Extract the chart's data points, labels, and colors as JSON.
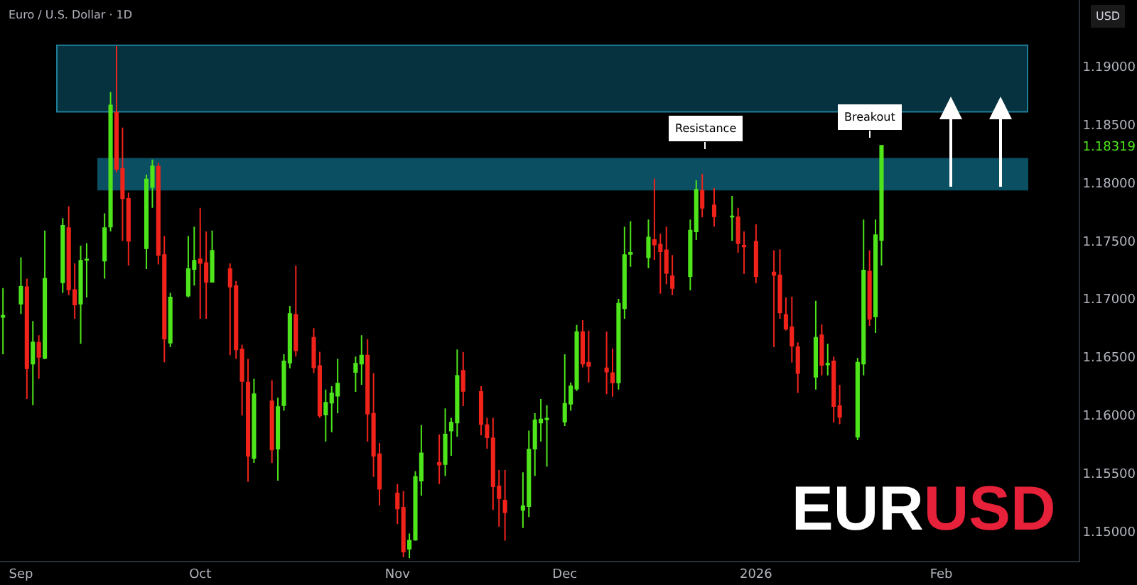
{
  "chart_data": {
    "type": "candlestick",
    "title": "EURUSD",
    "subtitle": "Euro / U.S. Dollar · 1D",
    "ylabel": "USD",
    "x": [
      "2025-08-29",
      "2025-09-01",
      "2025-09-02",
      "2025-09-03",
      "2025-09-04",
      "2025-09-05",
      "2025-09-08",
      "2025-09-09",
      "2025-09-10",
      "2025-09-11",
      "2025-09-12",
      "2025-09-15",
      "2025-09-16",
      "2025-09-17",
      "2025-09-18",
      "2025-09-19",
      "2025-09-22",
      "2025-09-23",
      "2025-09-24",
      "2025-09-25",
      "2025-09-26",
      "2025-09-29",
      "2025-09-30",
      "2025-10-01",
      "2025-10-02",
      "2025-10-03",
      "2025-10-06",
      "2025-10-07",
      "2025-10-08",
      "2025-10-09",
      "2025-10-10",
      "2025-10-13",
      "2025-10-14",
      "2025-10-15",
      "2025-10-16",
      "2025-10-17",
      "2025-10-20",
      "2025-10-21",
      "2025-10-22",
      "2025-10-23",
      "2025-10-24",
      "2025-10-27",
      "2025-10-28",
      "2025-10-29",
      "2025-10-30",
      "2025-10-31",
      "2025-11-03",
      "2025-11-04",
      "2025-11-05",
      "2025-11-06",
      "2025-11-07",
      "2025-11-10",
      "2025-11-11",
      "2025-11-12",
      "2025-11-13",
      "2025-11-14",
      "2025-11-17",
      "2025-11-18",
      "2025-11-19",
      "2025-11-20",
      "2025-11-21",
      "2025-11-24",
      "2025-11-25",
      "2025-11-26",
      "2025-11-27",
      "2025-11-28",
      "2025-12-01",
      "2025-12-02",
      "2025-12-03",
      "2025-12-04",
      "2025-12-05",
      "2025-12-08",
      "2025-12-09",
      "2025-12-10",
      "2025-12-11",
      "2025-12-12",
      "2025-12-15",
      "2025-12-16",
      "2025-12-17",
      "2025-12-18",
      "2025-12-19",
      "2025-12-22",
      "2025-12-23",
      "2025-12-24",
      "2025-12-26",
      "2025-12-29",
      "2025-12-30",
      "2025-12-31",
      "2026-01-02",
      "2026-01-05",
      "2026-01-06",
      "2026-01-07",
      "2026-01-08",
      "2026-01-09",
      "2026-01-12",
      "2026-01-13",
      "2026-01-14",
      "2026-01-15",
      "2026-01-16",
      "2026-01-19",
      "2026-01-20",
      "2026-01-21",
      "2026-01-22",
      "2026-01-23"
    ],
    "ohlc": [
      [
        1.16845,
        1.17093,
        1.16524,
        1.16855
      ],
      [
        1.16959,
        1.17357,
        1.1687,
        1.17105
      ],
      [
        1.17101,
        1.17174,
        1.16138,
        1.16402
      ],
      [
        1.16443,
        1.16809,
        1.16085,
        1.16626
      ],
      [
        1.16622,
        1.16687,
        1.16313,
        1.165
      ],
      [
        1.16492,
        1.17589,
        1.1648,
        1.17174
      ],
      [
        1.17142,
        1.17695,
        1.17052,
        1.1763
      ],
      [
        1.1761,
        1.17797,
        1.17032,
        1.17081
      ],
      [
        1.17077,
        1.17305,
        1.16829,
        1.16951
      ],
      [
        1.16959,
        1.17459,
        1.16614,
        1.17329
      ],
      [
        1.17337,
        1.1748,
        1.17012,
        1.1734
      ],
      [
        1.17329,
        1.17736,
        1.17174,
        1.1761
      ],
      [
        1.17622,
        1.1878,
        1.17581,
        1.18666
      ],
      [
        1.18605,
        1.19175,
        1.18089,
        1.18118
      ],
      [
        1.18118,
        1.18475,
        1.175,
        1.17866
      ],
      [
        1.17862,
        1.17914,
        1.17288,
        1.175
      ],
      [
        1.17435,
        1.18069,
        1.17256,
        1.18028
      ],
      [
        1.17963,
        1.18199,
        1.17784,
        1.18142
      ],
      [
        1.18138,
        1.1817,
        1.17297,
        1.17378
      ],
      [
        1.17378,
        1.17541,
        1.16455,
        1.16658
      ],
      [
        1.16622,
        1.17052,
        1.16585,
        1.17012
      ],
      [
        1.17028,
        1.17541,
        1.17012,
        1.17256
      ],
      [
        1.17256,
        1.17622,
        1.17114,
        1.17329
      ],
      [
        1.17341,
        1.17784,
        1.16829,
        1.17309
      ],
      [
        1.17309,
        1.17581,
        1.16829,
        1.17146
      ],
      [
        1.17146,
        1.17589,
        1.17142,
        1.17414
      ],
      [
        1.17256,
        1.17305,
        1.16516,
        1.17105
      ],
      [
        1.1711,
        1.17154,
        1.16483,
        1.16565
      ],
      [
        1.16565,
        1.16606,
        1.15996,
        1.16293
      ],
      [
        1.1628,
        1.16483,
        1.15427,
        1.1565
      ],
      [
        1.1563,
        1.16313,
        1.15589,
        1.16179
      ],
      [
        1.16118,
        1.16301,
        1.15589,
        1.15703
      ],
      [
        1.15711,
        1.1615,
        1.15435,
        1.16069
      ],
      [
        1.16085,
        1.16524,
        1.16037,
        1.16463
      ],
      [
        1.16451,
        1.16939,
        1.16402,
        1.1687
      ],
      [
        1.16862,
        1.17288,
        1.16504,
        1.16557
      ],
      [
        1.16666,
        1.16748,
        1.16362,
        1.1641
      ],
      [
        1.16423,
        1.16545,
        1.15975,
        1.15996
      ],
      [
        1.16004,
        1.16219,
        1.15772,
        1.16106
      ],
      [
        1.16106,
        1.16248,
        1.15853,
        1.16187
      ],
      [
        1.16166,
        1.16483,
        1.16016,
        1.16272
      ],
      [
        1.1637,
        1.16504,
        1.16199,
        1.16443
      ],
      [
        1.16443,
        1.16687,
        1.1626,
        1.16512
      ],
      [
        1.16512,
        1.16654,
        1.15772,
        1.16012
      ],
      [
        1.16012,
        1.16362,
        1.15467,
        1.1565
      ],
      [
        1.15663,
        1.1576,
        1.15223,
        1.15366
      ],
      [
        1.15325,
        1.15406,
        1.15061,
        1.15195
      ],
      [
        1.15203,
        1.15345,
        1.14776,
        1.14825
      ],
      [
        1.14849,
        1.1498,
        1.14768,
        1.14919
      ],
      [
        1.14927,
        1.15516,
        1.14919,
        1.15467
      ],
      [
        1.15435,
        1.15914,
        1.15305,
        1.15671
      ],
      [
        1.15589,
        1.15833,
        1.15406,
        1.15573
      ],
      [
        1.15577,
        1.16057,
        1.15475,
        1.15833
      ],
      [
        1.15866,
        1.15976,
        1.1565,
        1.15935
      ],
      [
        1.15935,
        1.16565,
        1.15813,
        1.16337
      ],
      [
        1.16382,
        1.16544,
        1.16077,
        1.16207
      ],
      [
        1.16199,
        1.16248,
        1.15825,
        1.15922
      ],
      [
        1.15914,
        1.15976,
        1.15711,
        1.15809
      ],
      [
        1.15801,
        1.15976,
        1.15183,
        1.15386
      ],
      [
        1.15386,
        1.15528,
        1.1504,
        1.15284
      ],
      [
        1.15264,
        1.15528,
        1.14919,
        1.15163
      ],
      [
        1.15183,
        1.15508,
        1.15028,
        1.15215
      ],
      [
        1.15215,
        1.15866,
        1.15122,
        1.15703
      ],
      [
        1.15711,
        1.16016,
        1.15475,
        1.15955
      ],
      [
        1.15935,
        1.16138,
        1.15772,
        1.15963
      ],
      [
        1.15963,
        1.16085,
        1.15557,
        1.15971
      ],
      [
        1.15943,
        1.16524,
        1.15906,
        1.16097
      ],
      [
        1.16097,
        1.1628,
        1.16037,
        1.16248
      ],
      [
        1.16227,
        1.16776,
        1.16207,
        1.16715
      ],
      [
        1.16715,
        1.16817,
        1.1641,
        1.16443
      ],
      [
        1.16451,
        1.16727,
        1.1628,
        1.16423
      ],
      [
        1.16402,
        1.16719,
        1.16179,
        1.16374
      ],
      [
        1.16362,
        1.16573,
        1.16158,
        1.1628
      ],
      [
        1.1628,
        1.17,
        1.16219,
        1.16959
      ],
      [
        1.16919,
        1.17622,
        1.16829,
        1.17378
      ],
      [
        1.17386,
        1.1767,
        1.17276,
        1.17398
      ],
      [
        1.17357,
        1.17683,
        1.17264,
        1.17528
      ],
      [
        1.17508,
        1.18036,
        1.17337,
        1.17467
      ],
      [
        1.17467,
        1.17561,
        1.17044,
        1.1741
      ],
      [
        1.17418,
        1.17622,
        1.17126,
        1.17223
      ],
      [
        1.17195,
        1.17378,
        1.17032,
        1.17093
      ],
      [
        1.17195,
        1.17683,
        1.17073,
        1.17589
      ],
      [
        1.17581,
        1.1802,
        1.17508,
        1.17939
      ],
      [
        1.17931,
        1.18077,
        1.17703,
        1.17784
      ],
      [
        1.17805,
        1.17955,
        1.17622,
        1.17711
      ],
      [
        1.17707,
        1.17886,
        1.175,
        1.17711
      ],
      [
        1.17703,
        1.17784,
        1.17398,
        1.1748
      ],
      [
        1.17459,
        1.17581,
        1.17215,
        1.17451
      ],
      [
        1.17492,
        1.17642,
        1.17134,
        1.17195
      ],
      [
        1.17228,
        1.17419,
        1.16585,
        1.17207
      ],
      [
        1.17203,
        1.17427,
        1.16829,
        1.16882
      ],
      [
        1.16862,
        1.17012,
        1.16728,
        1.16744
      ],
      [
        1.16756,
        1.1702,
        1.16451,
        1.16597
      ],
      [
        1.16585,
        1.16626,
        1.16191,
        1.16362
      ],
      [
        1.16329,
        1.16983,
        1.16219,
        1.16666
      ],
      [
        1.16687,
        1.1678,
        1.16341,
        1.16431
      ],
      [
        1.16435,
        1.16613,
        1.16341,
        1.16443
      ],
      [
        1.16463,
        1.16504,
        1.15935,
        1.16077
      ],
      [
        1.16077,
        1.1626,
        1.15922,
        1.15984
      ],
      [
        1.15813,
        1.16492,
        1.15784,
        1.16451
      ],
      [
        1.16443,
        1.17683,
        1.16341,
        1.17244
      ],
      [
        1.17236,
        1.17419,
        1.16768,
        1.16829
      ],
      [
        1.16849,
        1.17683,
        1.16707,
        1.17548
      ],
      [
        1.17508,
        1.18321,
        1.17288,
        1.18319
      ]
    ],
    "colors": [
      "#4ee51b",
      "#4ee51b",
      "#f0231b",
      "#4ee51b",
      "#f0231b",
      "#4ee51b",
      "#4ee51b",
      "#f0231b",
      "#f0231b",
      "#4ee51b",
      "#4ee51b",
      "#4ee51b",
      "#4ee51b",
      "#f0231b",
      "#f0231b",
      "#f0231b",
      "#4ee51b",
      "#4ee51b",
      "#f0231b",
      "#f0231b",
      "#4ee51b",
      "#4ee51b",
      "#4ee51b",
      "#f0231b",
      "#f0231b",
      "#4ee51b",
      "#f0231b",
      "#f0231b",
      "#f0231b",
      "#f0231b",
      "#4ee51b",
      "#f0231b",
      "#4ee51b",
      "#4ee51b",
      "#4ee51b",
      "#f0231b",
      "#f0231b",
      "#f0231b",
      "#4ee51b",
      "#4ee51b",
      "#4ee51b",
      "#4ee51b",
      "#4ee51b",
      "#f0231b",
      "#f0231b",
      "#f0231b",
      "#f0231b",
      "#f0231b",
      "#4ee51b",
      "#4ee51b",
      "#4ee51b",
      "#f0231b",
      "#4ee51b",
      "#4ee51b",
      "#4ee51b",
      "#f0231b",
      "#f0231b",
      "#f0231b",
      "#f0231b",
      "#f0231b",
      "#f0231b",
      "#4ee51b",
      "#4ee51b",
      "#4ee51b",
      "#4ee51b",
      "#4ee51b",
      "#4ee51b",
      "#4ee51b",
      "#4ee51b",
      "#f0231b",
      "#f0231b",
      "#f0231b",
      "#f0231b",
      "#4ee51b",
      "#4ee51b",
      "#4ee51b",
      "#4ee51b",
      "#f0231b",
      "#f0231b",
      "#f0231b",
      "#f0231b",
      "#4ee51b",
      "#4ee51b",
      "#f0231b",
      "#f0231b",
      "#4ee51b",
      "#f0231b",
      "#f0231b",
      "#f0231b",
      "#f0231b",
      "#f0231b",
      "#f0231b",
      "#f0231b",
      "#f0231b",
      "#4ee51b",
      "#f0231b",
      "#4ee51b",
      "#f0231b",
      "#f0231b",
      "#4ee51b",
      "#4ee51b",
      "#f0231b",
      "#4ee51b",
      "#4ee51b"
    ],
    "xlim": [
      "2025-08-28T12:00",
      "2026-02-25"
    ],
    "xticks": [
      {
        "value": "2025-09-01",
        "label": "Sep"
      },
      {
        "value": "2025-10-01",
        "label": "Oct"
      },
      {
        "value": "2025-11-03",
        "label": "Nov"
      },
      {
        "value": "2025-12-01",
        "label": "Dec"
      },
      {
        "value": "2026-01-02",
        "label": "2026"
      },
      {
        "value": "2026-02-02",
        "label": "Feb"
      }
    ],
    "ylim": [
      1.14745,
      1.19573
    ],
    "yticks": [
      {
        "value": 1.15,
        "label": "1.15000"
      },
      {
        "value": 1.155,
        "label": "1.15500"
      },
      {
        "value": 1.16,
        "label": "1.16000"
      },
      {
        "value": 1.165,
        "label": "1.16500"
      },
      {
        "value": 1.17,
        "label": "1.17000"
      },
      {
        "value": 1.175,
        "label": "1.17500"
      },
      {
        "value": 1.18,
        "label": "1.18000"
      },
      {
        "value": 1.18319,
        "label": "1.18319"
      },
      {
        "value": 1.185,
        "label": "1.18500"
      },
      {
        "value": 1.19,
        "label": "1.19000"
      }
    ],
    "bands": [
      {
        "axis": "y",
        "from": 1.1861,
        "to": 1.19183,
        "color": "#06323f"
      },
      {
        "axis": "y",
        "from": 1.17939,
        "to": 1.18207,
        "color": "#0b4f63"
      }
    ],
    "annotations": [
      "Resistance",
      "Breakout"
    ]
  }
}
